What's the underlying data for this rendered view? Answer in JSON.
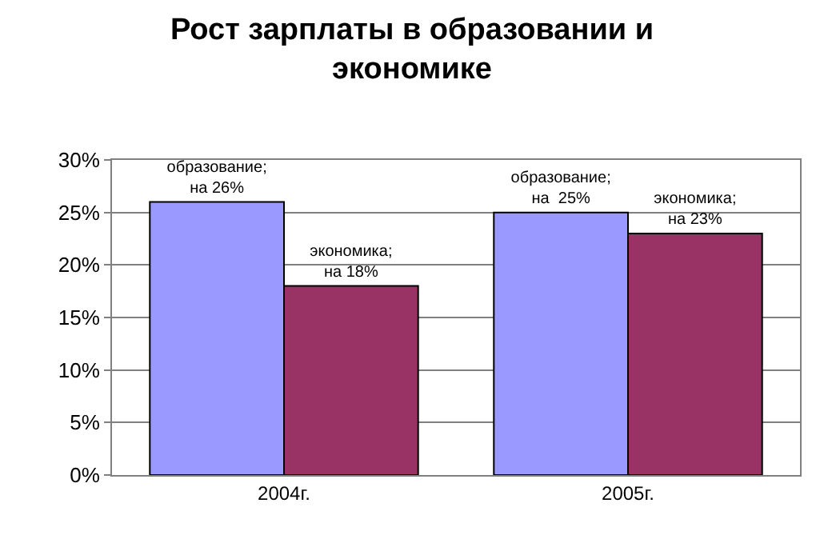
{
  "chart_data": {
    "type": "bar",
    "title": "Рост зарплаты в образовании и\nэкономике",
    "categories": [
      "2004г.",
      "2005г."
    ],
    "series": [
      {
        "color": "#9999ff",
        "values": [
          26,
          25
        ],
        "value_labels": [
          "образование;\nна 26%",
          "образование;\nна  25%"
        ]
      },
      {
        "color": "#993366",
        "values": [
          18,
          23
        ],
        "value_labels": [
          "экономика;\nна 18%",
          "экономика;\nна 23%"
        ]
      }
    ],
    "ylim": [
      0,
      30
    ],
    "yticks": [
      {
        "value": 0,
        "label": "0%"
      },
      {
        "value": 5,
        "label": "5%"
      },
      {
        "value": 10,
        "label": "10%"
      },
      {
        "value": 15,
        "label": "15%"
      },
      {
        "value": 20,
        "label": "20%"
      },
      {
        "value": 25,
        "label": "25%"
      },
      {
        "value": 30,
        "label": "30%"
      }
    ],
    "grid": "y",
    "legend": false
  }
}
